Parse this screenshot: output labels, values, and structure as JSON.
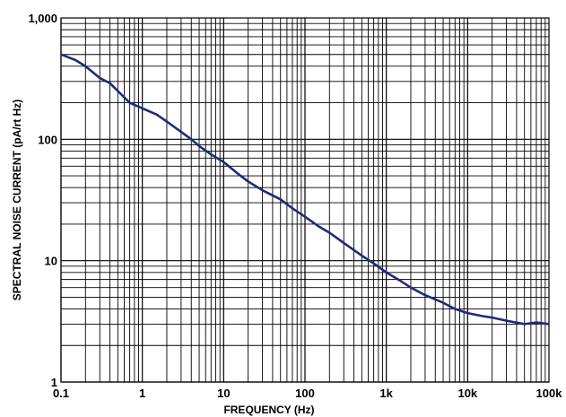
{
  "chart_data": {
    "type": "line",
    "title": "",
    "xlabel": "FREQUENCY  (Hz)",
    "ylabel": "SPECTRAL NOISE CURRENT (pA/rt Hz)",
    "x_scale": "log",
    "y_scale": "log",
    "xlim": [
      0.1,
      100000
    ],
    "ylim": [
      1,
      1000
    ],
    "grid": true,
    "x_ticks": [
      0.1,
      1,
      10,
      100,
      1000,
      10000,
      100000
    ],
    "x_tick_labels": [
      "0.1",
      "1",
      "10",
      "100",
      "1k",
      "10k",
      "100k"
    ],
    "y_ticks": [
      1,
      10,
      100,
      1000
    ],
    "y_tick_labels": [
      "1",
      "10",
      "100",
      "1,000"
    ],
    "line_color": "#1f2a7a",
    "series": [
      {
        "x": [
          0.1,
          0.15,
          0.2,
          0.3,
          0.4,
          0.5,
          0.7,
          1,
          1.5,
          2,
          3,
          4,
          5,
          7,
          10,
          15,
          20,
          30,
          50,
          70,
          100,
          150,
          200,
          300,
          500,
          700,
          1000,
          1500,
          2000,
          3000,
          5000,
          7000,
          10000,
          15000,
          20000,
          30000,
          50000,
          70000,
          100000
        ],
        "y": [
          500,
          450,
          400,
          320,
          290,
          250,
          200,
          180,
          160,
          140,
          115,
          100,
          88,
          75,
          65,
          52,
          45,
          38,
          32,
          27,
          23,
          19,
          17,
          14,
          11,
          9.5,
          8,
          6.8,
          6,
          5.2,
          4.5,
          4.0,
          3.7,
          3.5,
          3.4,
          3.2,
          3.0,
          3.1,
          3.0
        ]
      }
    ]
  }
}
